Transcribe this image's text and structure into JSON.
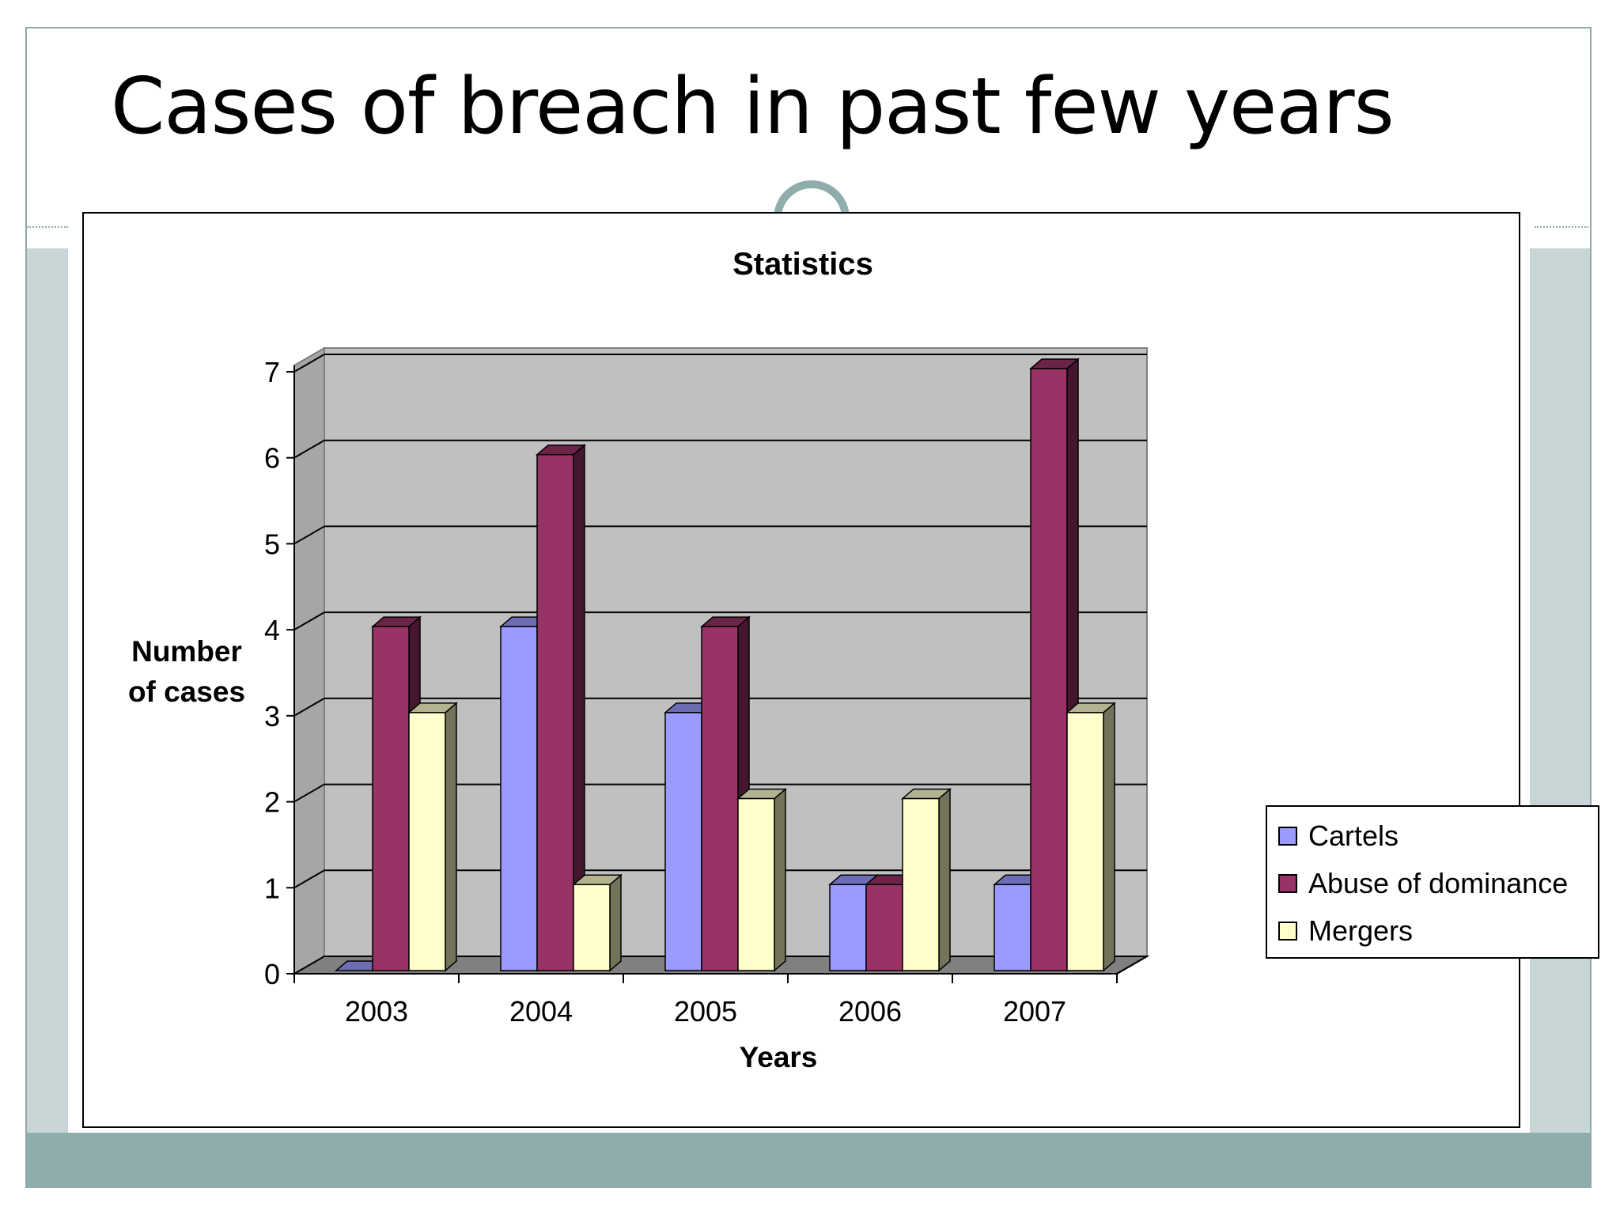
{
  "slide": {
    "title": "Cases of breach in past few years"
  },
  "chart_data": {
    "type": "bar",
    "title": "Statistics",
    "xlabel": "Years",
    "ylabel_lines": [
      "Number",
      "of cases"
    ],
    "categories": [
      "2003",
      "2004",
      "2005",
      "2006",
      "2007"
    ],
    "series": [
      {
        "name": "Cartels",
        "values": [
          0,
          4,
          3,
          1,
          1
        ],
        "color": "#9b9bff"
      },
      {
        "name": "Abuse of dominance",
        "values": [
          4,
          6,
          4,
          1,
          7
        ],
        "color": "#993366"
      },
      {
        "name": "Mergers",
        "values": [
          3,
          1,
          2,
          2,
          3
        ],
        "color": "#ffffcc"
      }
    ],
    "yticks": [
      "0",
      "1",
      "2",
      "3",
      "4",
      "5",
      "6",
      "7"
    ],
    "ylim": [
      0,
      7
    ],
    "grid": true,
    "legend_position": "right",
    "walls_color": "#c0c0c0",
    "floor_color": "#808080"
  }
}
